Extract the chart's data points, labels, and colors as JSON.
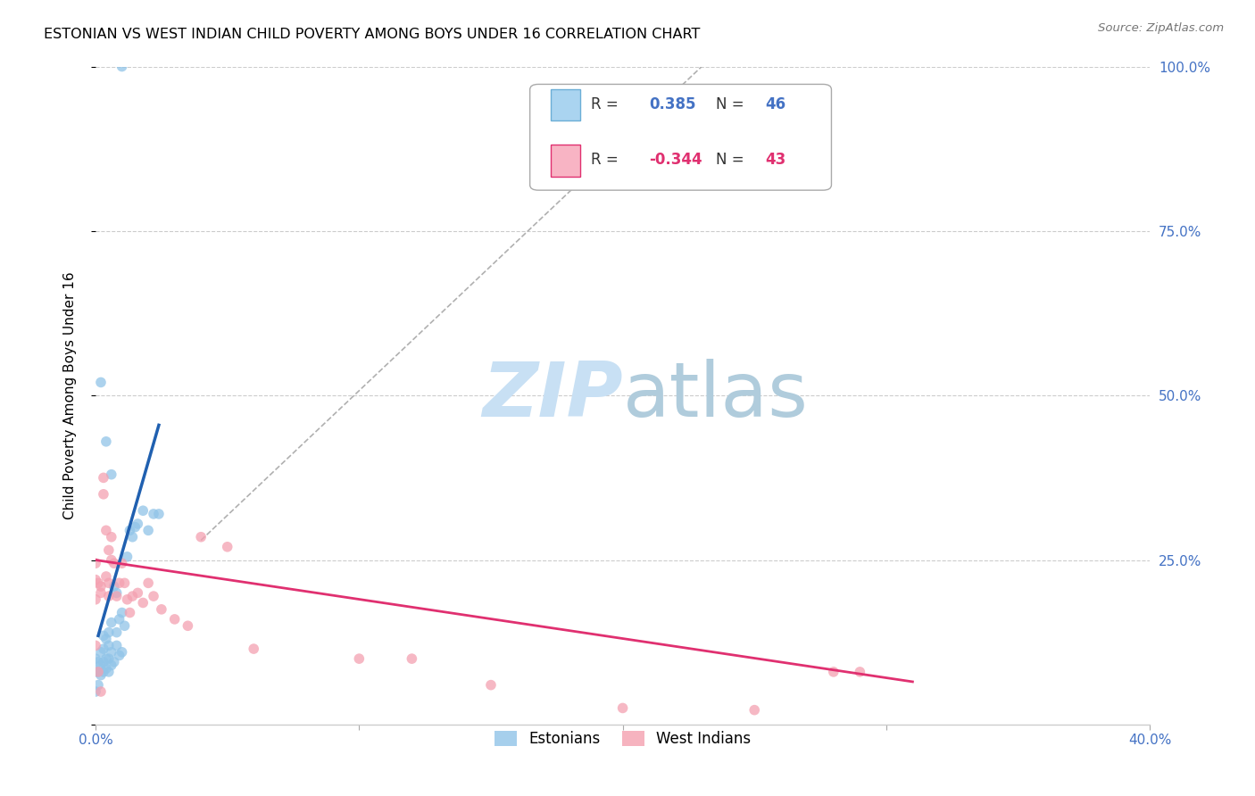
{
  "title": "ESTONIAN VS WEST INDIAN CHILD POVERTY AMONG BOYS UNDER 16 CORRELATION CHART",
  "source": "Source: ZipAtlas.com",
  "ylabel": "Child Poverty Among Boys Under 16",
  "xlim": [
    0.0,
    0.4
  ],
  "ylim": [
    0.0,
    1.0
  ],
  "r_estonian": 0.385,
  "n_estonian": 46,
  "r_west_indian": -0.344,
  "n_west_indian": 43,
  "estonian_color": "#90c4e8",
  "west_indian_color": "#f4a0b0",
  "estonian_line_color": "#2060b0",
  "west_indian_line_color": "#e03070",
  "tick_color": "#4472c4",
  "grid_color": "#cccccc",
  "watermark_color": "#c8e0f4",
  "estonians_x": [
    0.0,
    0.0,
    0.0,
    0.001,
    0.001,
    0.001,
    0.002,
    0.002,
    0.002,
    0.003,
    0.003,
    0.003,
    0.003,
    0.004,
    0.004,
    0.004,
    0.005,
    0.005,
    0.005,
    0.005,
    0.006,
    0.006,
    0.006,
    0.007,
    0.007,
    0.008,
    0.008,
    0.008,
    0.009,
    0.009,
    0.01,
    0.01,
    0.011,
    0.012,
    0.013,
    0.014,
    0.015,
    0.016,
    0.018,
    0.02,
    0.022,
    0.024,
    0.002,
    0.004,
    0.006,
    0.01
  ],
  "estonians_y": [
    0.05,
    0.08,
    0.1,
    0.06,
    0.08,
    0.095,
    0.075,
    0.09,
    0.11,
    0.08,
    0.095,
    0.115,
    0.135,
    0.085,
    0.1,
    0.13,
    0.08,
    0.1,
    0.12,
    0.14,
    0.09,
    0.11,
    0.155,
    0.095,
    0.21,
    0.12,
    0.14,
    0.2,
    0.105,
    0.16,
    0.11,
    0.17,
    0.15,
    0.255,
    0.295,
    0.285,
    0.3,
    0.305,
    0.325,
    0.295,
    0.32,
    0.32,
    0.52,
    0.43,
    0.38,
    1.0
  ],
  "west_indians_x": [
    0.0,
    0.0,
    0.0,
    0.001,
    0.002,
    0.002,
    0.003,
    0.003,
    0.004,
    0.004,
    0.005,
    0.005,
    0.005,
    0.006,
    0.006,
    0.007,
    0.008,
    0.009,
    0.01,
    0.011,
    0.012,
    0.013,
    0.014,
    0.016,
    0.018,
    0.02,
    0.022,
    0.025,
    0.03,
    0.035,
    0.04,
    0.05,
    0.06,
    0.1,
    0.12,
    0.15,
    0.2,
    0.25,
    0.28,
    0.29,
    0.0,
    0.001,
    0.002
  ],
  "west_indians_y": [
    0.245,
    0.22,
    0.19,
    0.215,
    0.21,
    0.2,
    0.35,
    0.375,
    0.295,
    0.225,
    0.265,
    0.215,
    0.195,
    0.285,
    0.25,
    0.245,
    0.195,
    0.215,
    0.245,
    0.215,
    0.19,
    0.17,
    0.195,
    0.2,
    0.185,
    0.215,
    0.195,
    0.175,
    0.16,
    0.15,
    0.285,
    0.27,
    0.115,
    0.1,
    0.1,
    0.06,
    0.025,
    0.022,
    0.08,
    0.08,
    0.12,
    0.08,
    0.05
  ],
  "blue_line_x": [
    0.001,
    0.024
  ],
  "blue_line_y": [
    0.135,
    0.455
  ],
  "pink_line_x": [
    0.0,
    0.31
  ],
  "pink_line_y": [
    0.25,
    0.065
  ],
  "diag_line_x": [
    0.04,
    0.23
  ],
  "diag_line_y": [
    0.28,
    1.0
  ]
}
